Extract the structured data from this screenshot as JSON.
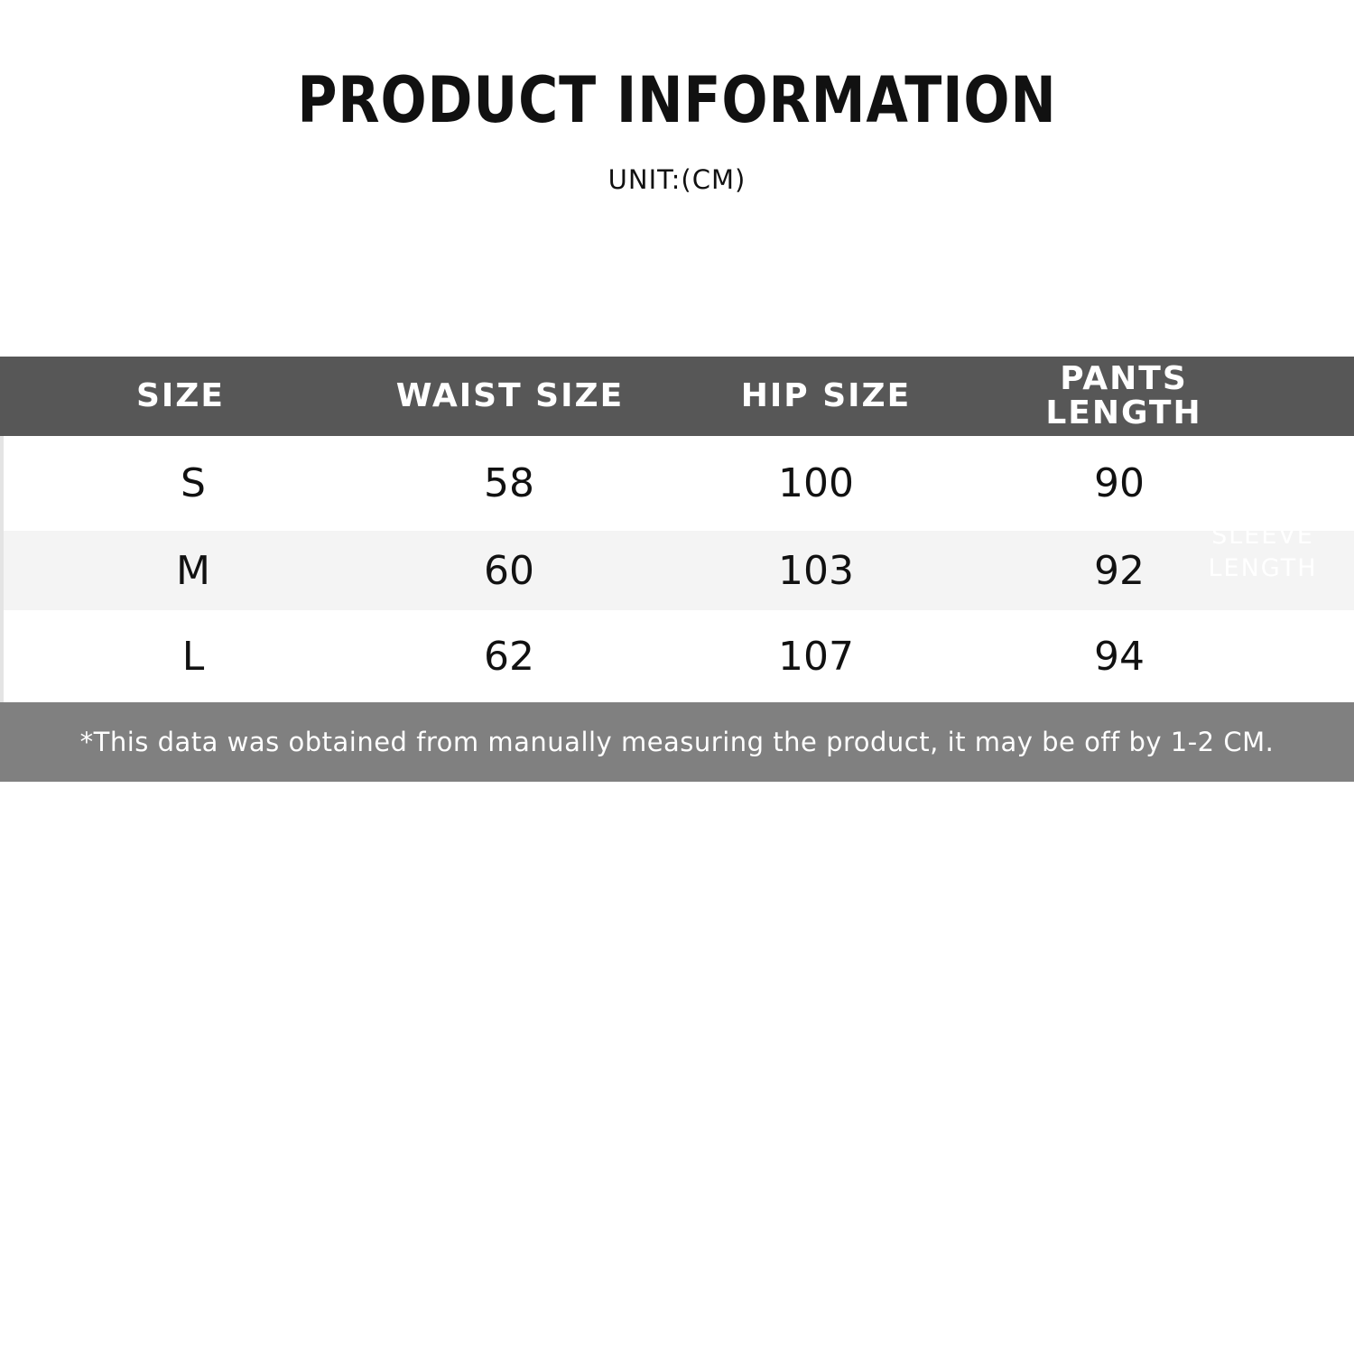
{
  "title": "PRODUCT INFORMATION",
  "unit": "UNIT:(CM)",
  "table": {
    "headers": [
      "SIZE",
      "WAIST SIZE",
      "HIP SIZE",
      "PANTS LENGTH"
    ],
    "rows": [
      [
        "S",
        "58",
        "100",
        "90"
      ],
      [
        "M",
        "60",
        "103",
        "92"
      ],
      [
        "L",
        "62",
        "107",
        "94"
      ]
    ],
    "ghost_label": "SLEEVE LENGTH"
  },
  "footnote": "*This data was obtained from manually measuring the product, it may be off by 1-2 CM.",
  "colors": {
    "header_bg": "#575757",
    "footer_bg": "#808080",
    "alt_row": "#f4f4f4"
  }
}
